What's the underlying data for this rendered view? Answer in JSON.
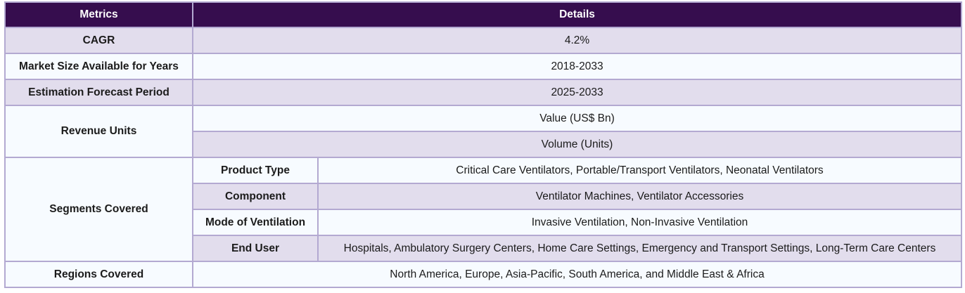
{
  "header": {
    "metrics": "Metrics",
    "details": "Details"
  },
  "rows": {
    "cagr": {
      "label": "CAGR",
      "value": "4.2%"
    },
    "market_size": {
      "label": "Market Size Available for Years",
      "value": "2018-2033"
    },
    "forecast": {
      "label": "Estimation Forecast Period",
      "value": "2025-2033"
    },
    "revenue_units": {
      "label": "Revenue Units",
      "values": [
        "Value (US$ Bn)",
        "Volume (Units)"
      ]
    },
    "segments": {
      "label": "Segments Covered",
      "items": [
        {
          "name": "Product Type",
          "value": "Critical Care Ventilators, Portable/Transport Ventilators, Neonatal Ventilators"
        },
        {
          "name": "Component",
          "value": "Ventilator Machines, Ventilator Accessories"
        },
        {
          "name": "Mode of Ventilation",
          "value": "Invasive Ventilation, Non-Invasive Ventilation"
        },
        {
          "name": "End User",
          "value": "Hospitals, Ambulatory Surgery Centers, Home Care Settings, Emergency and Transport Settings, Long-Term Care Centers"
        }
      ]
    },
    "regions": {
      "label": "Regions Covered",
      "value": "North America, Europe, Asia-Pacific, South America, and Middle East & Africa"
    }
  }
}
